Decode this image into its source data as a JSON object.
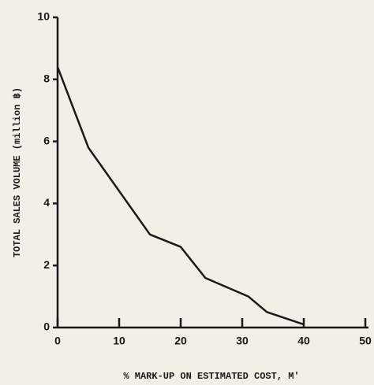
{
  "chart_data": {
    "type": "line",
    "x_label": "% MARK-UP ON ESTIMATED COST, M'",
    "y_label": "TOTAL SALES VOLUME (million ฿)",
    "x": [
      0,
      5,
      15,
      20,
      24,
      31,
      34,
      40
    ],
    "series": [
      {
        "color": "#1a1a1a",
        "values": [
          8.4,
          5.8,
          3.0,
          2.6,
          1.6,
          1.0,
          0.5,
          0.1
        ]
      }
    ],
    "xlim": [
      0,
      50
    ],
    "xticks": [
      0,
      10,
      20,
      30,
      40,
      50
    ],
    "ylim": [
      0,
      10
    ],
    "yticks": [
      0,
      2,
      4,
      6,
      8,
      10
    ],
    "grid": false
  }
}
